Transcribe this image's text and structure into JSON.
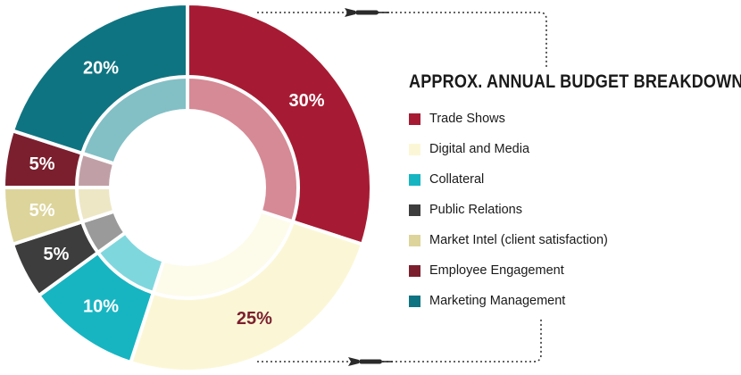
{
  "chart_data": {
    "type": "pie",
    "title": "APPROX. ANNUAL BUDGET BREAKDOWN",
    "categories": [
      "Trade Shows",
      "Digital and Media",
      "Collateral",
      "Public Relations",
      "Market Intel (client satisfaction)",
      "Employee Engagement",
      "Marketing Management"
    ],
    "values": [
      30,
      25,
      10,
      5,
      5,
      5,
      20
    ],
    "labels": [
      "30%",
      "25%",
      "10%",
      "5%",
      "5%",
      "5%",
      "20%"
    ],
    "colors": [
      "#a61b33",
      "#fbf7d6",
      "#17b5c2",
      "#3d3d3d",
      "#ddd49b",
      "#7b1f2e",
      "#0f7481"
    ],
    "inner_colors": [
      "#d68a96",
      "#fdfbea",
      "#7fd7de",
      "#9a9a9a",
      "#ede7c5",
      "#c0a0a6",
      "#82c0c6"
    ],
    "label_colors": [
      "#ffffff",
      "#7b1f2e",
      "#ffffff",
      "#ffffff",
      "#ffffff",
      "#ffffff",
      "#ffffff"
    ],
    "legend_position": "right"
  }
}
